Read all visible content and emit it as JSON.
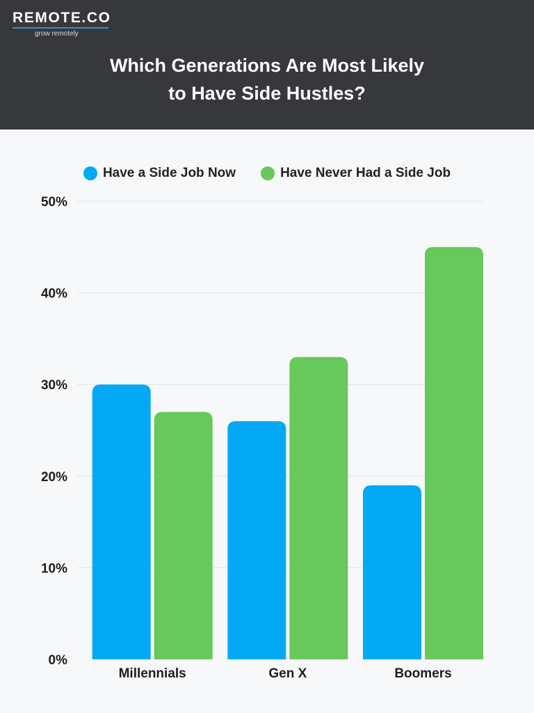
{
  "brand": {
    "name": "REMOTE.CO",
    "tagline": "grow remotely",
    "accent_color": "#2d8fd5"
  },
  "title_lines": [
    "Which Generations Are Most Likely",
    "to Have Side Hustles?"
  ],
  "chart_data": {
    "type": "bar",
    "categories": [
      "Millennials",
      "Gen X",
      "Boomers"
    ],
    "series": [
      {
        "name": "Have a Side Job Now",
        "color": "#03a9f4",
        "values": [
          30,
          26,
          19
        ]
      },
      {
        "name": "Have Never Had a Side Job",
        "color": "#67c85b",
        "values": [
          27,
          33,
          45
        ]
      }
    ],
    "ylim": [
      0,
      50
    ],
    "yticks": [
      0,
      10,
      20,
      30,
      40,
      50
    ],
    "ytick_labels": [
      "0%",
      "10%",
      "20%",
      "30%",
      "40%",
      "50%"
    ],
    "grid": true,
    "legend_position": "top-center"
  }
}
